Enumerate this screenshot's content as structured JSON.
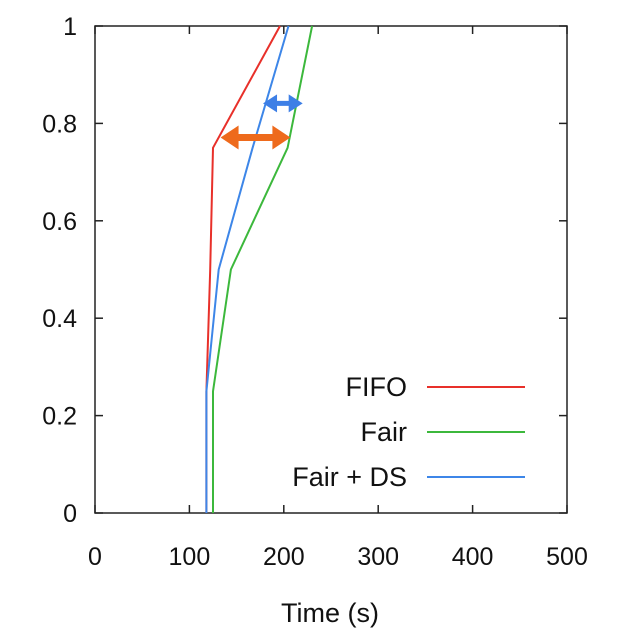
{
  "chart_data": {
    "type": "line",
    "title": "",
    "xlabel": "Time (s)",
    "ylabel": "",
    "xlim": [
      0,
      500
    ],
    "ylim": [
      0,
      1
    ],
    "xticks": [
      "0",
      "100",
      "200",
      "300",
      "400",
      "500"
    ],
    "yticks": [
      "0",
      "0.2",
      "0.4",
      "0.6",
      "0.8",
      "1"
    ],
    "grid": false,
    "legend_position": "bottom-right",
    "series": [
      {
        "name": "FIFO",
        "color": "#e8302a",
        "x": [
          118,
          118,
          122,
          125,
          196
        ],
        "y": [
          0,
          0.25,
          0.5,
          0.75,
          1.0
        ]
      },
      {
        "name": "Fair",
        "color": "#3cb83c",
        "x": [
          125,
          125,
          144,
          204,
          230
        ],
        "y": [
          0,
          0.25,
          0.5,
          0.75,
          1.0
        ]
      },
      {
        "name": "Fair + DS",
        "color": "#3d86e8",
        "x": [
          118,
          118,
          131,
          167,
          205
        ],
        "y": [
          0,
          0.25,
          0.5,
          0.75,
          1.0
        ]
      }
    ],
    "annotations": [
      {
        "type": "double-arrow",
        "color": "#ee6a1c",
        "x_from": 133,
        "x_to": 207,
        "y": 0.771
      },
      {
        "type": "double-arrow",
        "color": "#3d7fe6",
        "x_from": 178,
        "x_to": 220,
        "y": 0.841
      }
    ]
  }
}
